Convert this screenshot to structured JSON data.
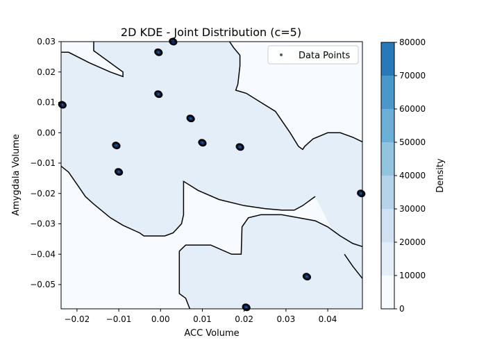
{
  "chart_data": {
    "type": "heatmap",
    "title": "2D KDE - Joint Distribution (c=5)",
    "xlabel": "ACC Volume",
    "ylabel": "Amygdala Volume",
    "xlim": [
      -0.0238,
      0.0483
    ],
    "ylim": [
      -0.058,
      0.03
    ],
    "x_ticks": [
      -0.02,
      -0.01,
      0.0,
      0.01,
      0.02,
      0.03,
      0.04
    ],
    "x_tick_labels": [
      "−0.02",
      "−0.01",
      "0.00",
      "0.01",
      "0.02",
      "0.03",
      "0.04"
    ],
    "y_ticks": [
      0.03,
      0.02,
      0.01,
      0.0,
      -0.01,
      -0.02,
      -0.03,
      -0.04,
      -0.05
    ],
    "y_tick_labels": [
      "0.03",
      "0.02",
      "0.01",
      "0.00",
      "−0.01",
      "−0.02",
      "−0.03",
      "−0.04",
      "−0.05"
    ],
    "colorbar": {
      "label": "Density",
      "levels": [
        0,
        10000,
        20000,
        30000,
        40000,
        50000,
        60000,
        70000,
        80000
      ],
      "tick_labels": [
        "0",
        "10000",
        "20000",
        "30000",
        "40000",
        "50000",
        "60000",
        "70000",
        "80000"
      ],
      "colors": [
        "#f7fbff",
        "#e3eef9",
        "#cfe1f2",
        "#b5d4e9",
        "#93c4df",
        "#6baed6",
        "#4a98c9",
        "#2879b9",
        "#0d57a1",
        "#08306b"
      ]
    },
    "background_level_color": "#e3eef9",
    "low_level_color": "#f7fbff",
    "legend": {
      "label": "Data Points",
      "placement": "top-right"
    },
    "clusters": [
      {
        "x": -0.0106,
        "y": -0.0042
      },
      {
        "x": -0.01,
        "y": -0.0129
      },
      {
        "x": -0.0005,
        "y": 0.0265
      },
      {
        "x": -0.0005,
        "y": 0.0127
      },
      {
        "x": 0.003,
        "y": 0.03
      },
      {
        "x": 0.0072,
        "y": 0.0047
      },
      {
        "x": 0.01,
        "y": -0.0033
      },
      {
        "x": 0.019,
        "y": -0.0047
      },
      {
        "x": 0.0205,
        "y": -0.0575
      },
      {
        "x": 0.035,
        "y": -0.0474
      },
      {
        "x": 0.048,
        "y": -0.02
      },
      {
        "x": -0.0235,
        "y": 0.0092
      }
    ],
    "contour_10000": [
      [
        [
          -0.0238,
          0.0265
        ],
        [
          -0.022,
          0.0265
        ],
        [
          -0.017,
          0.023
        ],
        [
          -0.012,
          0.02
        ],
        [
          -0.009,
          0.0185
        ],
        [
          -0.009,
          0.02
        ],
        [
          -0.016,
          0.027
        ],
        [
          -0.016,
          0.03
        ]
      ],
      [
        [
          0.0165,
          0.03
        ],
        [
          0.0175,
          0.028
        ],
        [
          0.019,
          0.0255
        ],
        [
          0.019,
          0.022
        ],
        [
          0.0185,
          0.016
        ],
        [
          0.018,
          0.014
        ],
        [
          0.0205,
          0.013
        ],
        [
          0.024,
          0.01
        ],
        [
          0.0275,
          0.007
        ],
        [
          0.0295,
          0.003
        ],
        [
          0.031,
          0.0
        ],
        [
          0.033,
          -0.0045
        ],
        [
          0.034,
          -0.0055
        ],
        [
          0.0345,
          -0.0045
        ],
        [
          0.0365,
          -0.002
        ],
        [
          0.04,
          0.0
        ],
        [
          0.043,
          0.0
        ],
        [
          0.046,
          -0.0015
        ],
        [
          0.0483,
          -0.003
        ]
      ],
      [
        [
          -0.0238,
          -0.011
        ],
        [
          -0.022,
          -0.013
        ],
        [
          -0.02,
          -0.017
        ],
        [
          -0.018,
          -0.021
        ],
        [
          -0.016,
          -0.0235
        ],
        [
          -0.012,
          -0.028
        ],
        [
          -0.009,
          -0.0305
        ],
        [
          -0.005,
          -0.033
        ],
        [
          -0.004,
          -0.034
        ],
        [
          0.001,
          -0.034
        ],
        [
          0.003,
          -0.033
        ],
        [
          0.005,
          -0.03
        ],
        [
          0.0055,
          -0.027
        ],
        [
          0.0055,
          -0.016
        ],
        [
          0.009,
          -0.019
        ],
        [
          0.014,
          -0.022
        ],
        [
          0.02,
          -0.024
        ],
        [
          0.025,
          -0.025
        ],
        [
          0.029,
          -0.0255
        ],
        [
          0.032,
          -0.0255
        ],
        [
          0.034,
          -0.024
        ],
        [
          0.037,
          -0.021
        ]
      ],
      [
        [
          0.0483,
          -0.0375
        ],
        [
          0.046,
          -0.0365
        ],
        [
          0.043,
          -0.034
        ],
        [
          0.04,
          -0.031
        ],
        [
          0.037,
          -0.029
        ],
        [
          0.033,
          -0.028
        ],
        [
          0.029,
          -0.027
        ],
        [
          0.024,
          -0.027
        ],
        [
          0.021,
          -0.028
        ],
        [
          0.0195,
          -0.031
        ],
        [
          0.0193,
          -0.04
        ],
        [
          0.017,
          -0.04
        ],
        [
          0.012,
          -0.037
        ],
        [
          0.006,
          -0.037
        ],
        [
          0.0045,
          -0.039
        ],
        [
          0.0045,
          -0.053
        ],
        [
          0.006,
          -0.0545
        ],
        [
          0.007,
          -0.058
        ]
      ],
      [
        [
          0.0483,
          -0.048
        ],
        [
          0.046,
          -0.044
        ],
        [
          0.044,
          -0.04
        ]
      ]
    ]
  }
}
